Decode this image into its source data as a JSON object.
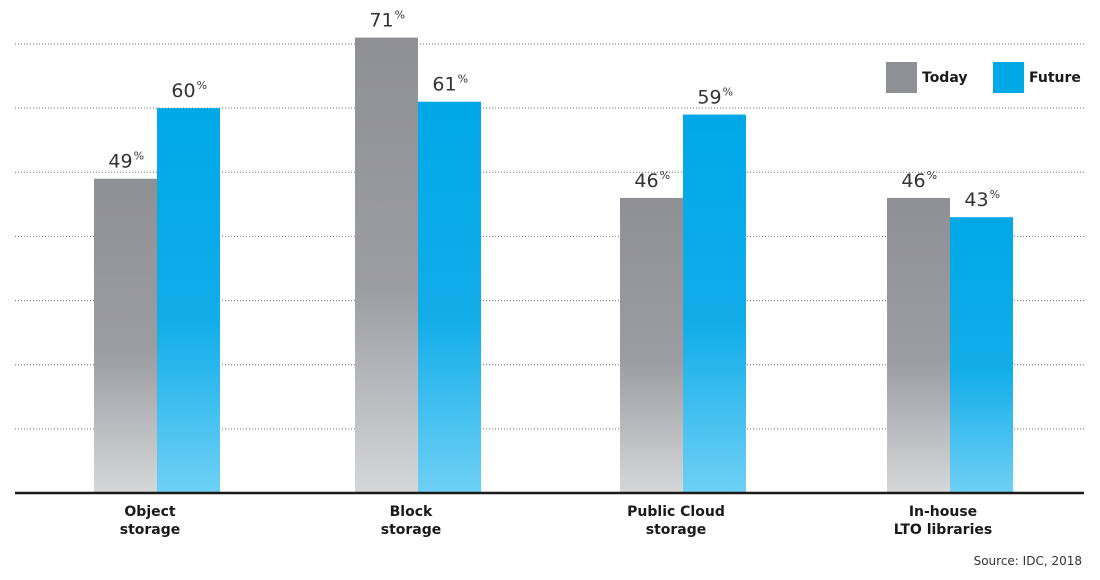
{
  "chart_data": {
    "type": "bar",
    "categories": [
      [
        "Object",
        "storage"
      ],
      [
        "Block",
        "storage"
      ],
      [
        "Public Cloud",
        "storage"
      ],
      [
        "In-house",
        "LTO libraries"
      ]
    ],
    "series": [
      {
        "name": "Today",
        "values": [
          49,
          71,
          46,
          46
        ],
        "color": "#8f9094"
      },
      {
        "name": "Future",
        "values": [
          60,
          61,
          59,
          43
        ],
        "color": "#00a8e8"
      }
    ],
    "value_suffix": "%",
    "ylim": [
      0,
      70
    ],
    "grid": true,
    "legend_position": "top-right",
    "source": "Source: IDC, 2018"
  }
}
